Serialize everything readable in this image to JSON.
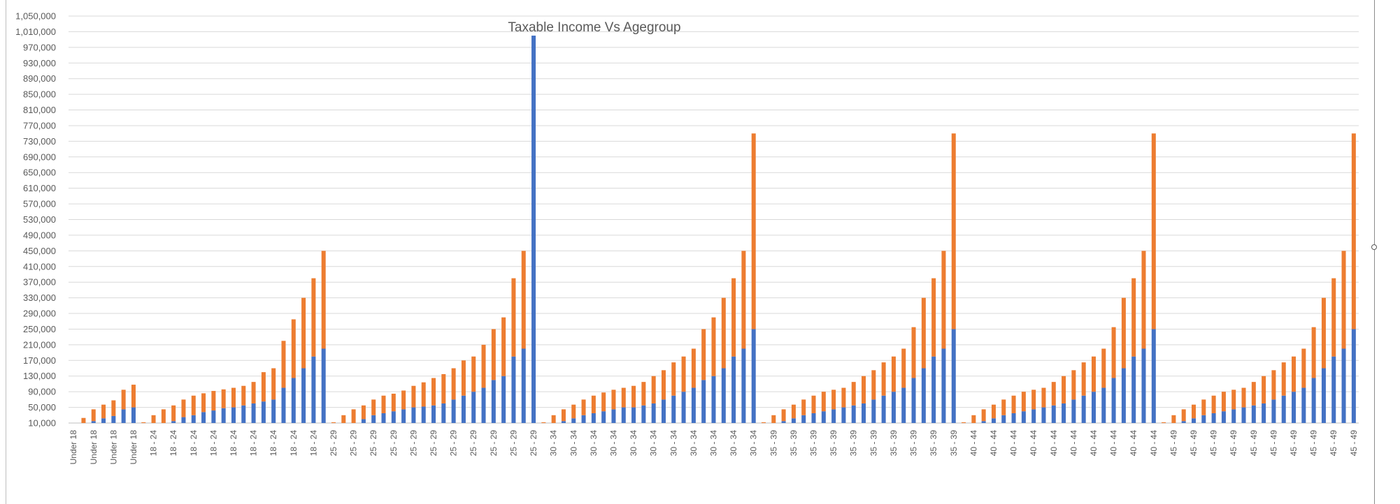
{
  "chart_data": {
    "type": "bar",
    "stacked": true,
    "title": "Taxable Income Vs Agegroup",
    "xlabel": "",
    "ylabel": "",
    "ylim": [
      10000,
      1050000
    ],
    "yticks": [
      10000,
      50000,
      90000,
      130000,
      170000,
      210000,
      250000,
      290000,
      330000,
      370000,
      410000,
      450000,
      490000,
      530000,
      570000,
      610000,
      650000,
      690000,
      730000,
      770000,
      810000,
      850000,
      890000,
      930000,
      970000,
      1010000,
      1050000
    ],
    "ytick_labels": [
      "10,000",
      "50,000",
      "90,000",
      "130,000",
      "170,000",
      "210,000",
      "250,000",
      "290,000",
      "330,000",
      "370,000",
      "410,000",
      "450,000",
      "490,000",
      "530,000",
      "570,000",
      "610,000",
      "650,000",
      "690,000",
      "730,000",
      "770,000",
      "810,000",
      "850,000",
      "890,000",
      "930,000",
      "970,000",
      "1,010,000",
      "1,050,000"
    ],
    "grid": true,
    "legend": "none",
    "colors": {
      "series1": "#4472c4",
      "series2": "#ed7d31",
      "grid": "#d9d9d9",
      "axis": "#bfbfbf",
      "text": "#595959"
    },
    "groups": [
      {
        "label": "Under 18",
        "bars": [
          [
            0,
            10000
          ],
          [
            5000,
            18000
          ],
          [
            15000,
            30000
          ],
          [
            22000,
            35000
          ],
          [
            28000,
            40000
          ],
          [
            45000,
            50000
          ],
          [
            50000,
            58000
          ]
        ]
      },
      {
        "label": "18 - 24",
        "bars": [
          [
            0,
            12000
          ],
          [
            5000,
            25000
          ],
          [
            10000,
            35000
          ],
          [
            15000,
            40000
          ],
          [
            25000,
            45000
          ],
          [
            30000,
            50000
          ],
          [
            38000,
            48000
          ],
          [
            42000,
            50000
          ],
          [
            48000,
            48000
          ],
          [
            50000,
            50000
          ],
          [
            55000,
            50000
          ],
          [
            60000,
            55000
          ],
          [
            65000,
            75000
          ],
          [
            70000,
            80000
          ],
          [
            100000,
            120000
          ],
          [
            125000,
            150000
          ],
          [
            150000,
            180000
          ],
          [
            180000,
            200000
          ],
          [
            200000,
            250000
          ]
        ]
      },
      {
        "label": "25 - 29",
        "bars": [
          [
            0,
            12000
          ],
          [
            5000,
            25000
          ],
          [
            10000,
            35000
          ],
          [
            20000,
            35000
          ],
          [
            30000,
            40000
          ],
          [
            35000,
            45000
          ],
          [
            40000,
            45000
          ],
          [
            45000,
            48000
          ],
          [
            50000,
            55000
          ],
          [
            52000,
            62000
          ],
          [
            55000,
            70000
          ],
          [
            60000,
            75000
          ],
          [
            70000,
            80000
          ],
          [
            80000,
            90000
          ],
          [
            90000,
            90000
          ],
          [
            100000,
            110000
          ],
          [
            120000,
            130000
          ],
          [
            130000,
            150000
          ],
          [
            180000,
            200000
          ],
          [
            200000,
            250000
          ],
          [
            1000000,
            0
          ]
        ]
      },
      {
        "label": "30 - 34",
        "bars": [
          [
            0,
            12000
          ],
          [
            5000,
            25000
          ],
          [
            15000,
            30000
          ],
          [
            22000,
            35000
          ],
          [
            30000,
            40000
          ],
          [
            35000,
            45000
          ],
          [
            40000,
            48000
          ],
          [
            45000,
            50000
          ],
          [
            50000,
            50000
          ],
          [
            50000,
            55000
          ],
          [
            55000,
            60000
          ],
          [
            60000,
            70000
          ],
          [
            70000,
            75000
          ],
          [
            80000,
            85000
          ],
          [
            90000,
            90000
          ],
          [
            100000,
            100000
          ],
          [
            120000,
            130000
          ],
          [
            130000,
            150000
          ],
          [
            150000,
            180000
          ],
          [
            180000,
            200000
          ],
          [
            200000,
            250000
          ],
          [
            250000,
            500000
          ]
        ]
      },
      {
        "label": "35 - 39",
        "bars": [
          [
            0,
            12000
          ],
          [
            5000,
            25000
          ],
          [
            15000,
            30000
          ],
          [
            22000,
            35000
          ],
          [
            30000,
            40000
          ],
          [
            35000,
            45000
          ],
          [
            40000,
            50000
          ],
          [
            45000,
            50000
          ],
          [
            50000,
            50000
          ],
          [
            55000,
            60000
          ],
          [
            60000,
            70000
          ],
          [
            70000,
            75000
          ],
          [
            80000,
            85000
          ],
          [
            90000,
            90000
          ],
          [
            100000,
            100000
          ],
          [
            125000,
            130000
          ],
          [
            150000,
            180000
          ],
          [
            180000,
            200000
          ],
          [
            200000,
            250000
          ],
          [
            250000,
            500000
          ]
        ]
      },
      {
        "label": "40 - 44",
        "bars": [
          [
            0,
            12000
          ],
          [
            5000,
            25000
          ],
          [
            15000,
            30000
          ],
          [
            22000,
            35000
          ],
          [
            30000,
            40000
          ],
          [
            35000,
            45000
          ],
          [
            40000,
            50000
          ],
          [
            45000,
            50000
          ],
          [
            50000,
            50000
          ],
          [
            55000,
            60000
          ],
          [
            60000,
            70000
          ],
          [
            70000,
            75000
          ],
          [
            80000,
            85000
          ],
          [
            90000,
            90000
          ],
          [
            100000,
            100000
          ],
          [
            125000,
            130000
          ],
          [
            150000,
            180000
          ],
          [
            180000,
            200000
          ],
          [
            200000,
            250000
          ],
          [
            250000,
            500000
          ]
        ]
      },
      {
        "label": "45 - 49",
        "bars": [
          [
            0,
            12000
          ],
          [
            5000,
            25000
          ],
          [
            15000,
            30000
          ],
          [
            22000,
            35000
          ],
          [
            30000,
            40000
          ],
          [
            35000,
            45000
          ],
          [
            40000,
            50000
          ],
          [
            45000,
            50000
          ],
          [
            50000,
            50000
          ],
          [
            55000,
            60000
          ],
          [
            60000,
            70000
          ],
          [
            70000,
            75000
          ],
          [
            80000,
            85000
          ],
          [
            90000,
            90000
          ],
          [
            100000,
            100000
          ],
          [
            125000,
            130000
          ],
          [
            150000,
            180000
          ],
          [
            180000,
            200000
          ],
          [
            200000,
            250000
          ],
          [
            250000,
            500000
          ]
        ]
      }
    ]
  }
}
